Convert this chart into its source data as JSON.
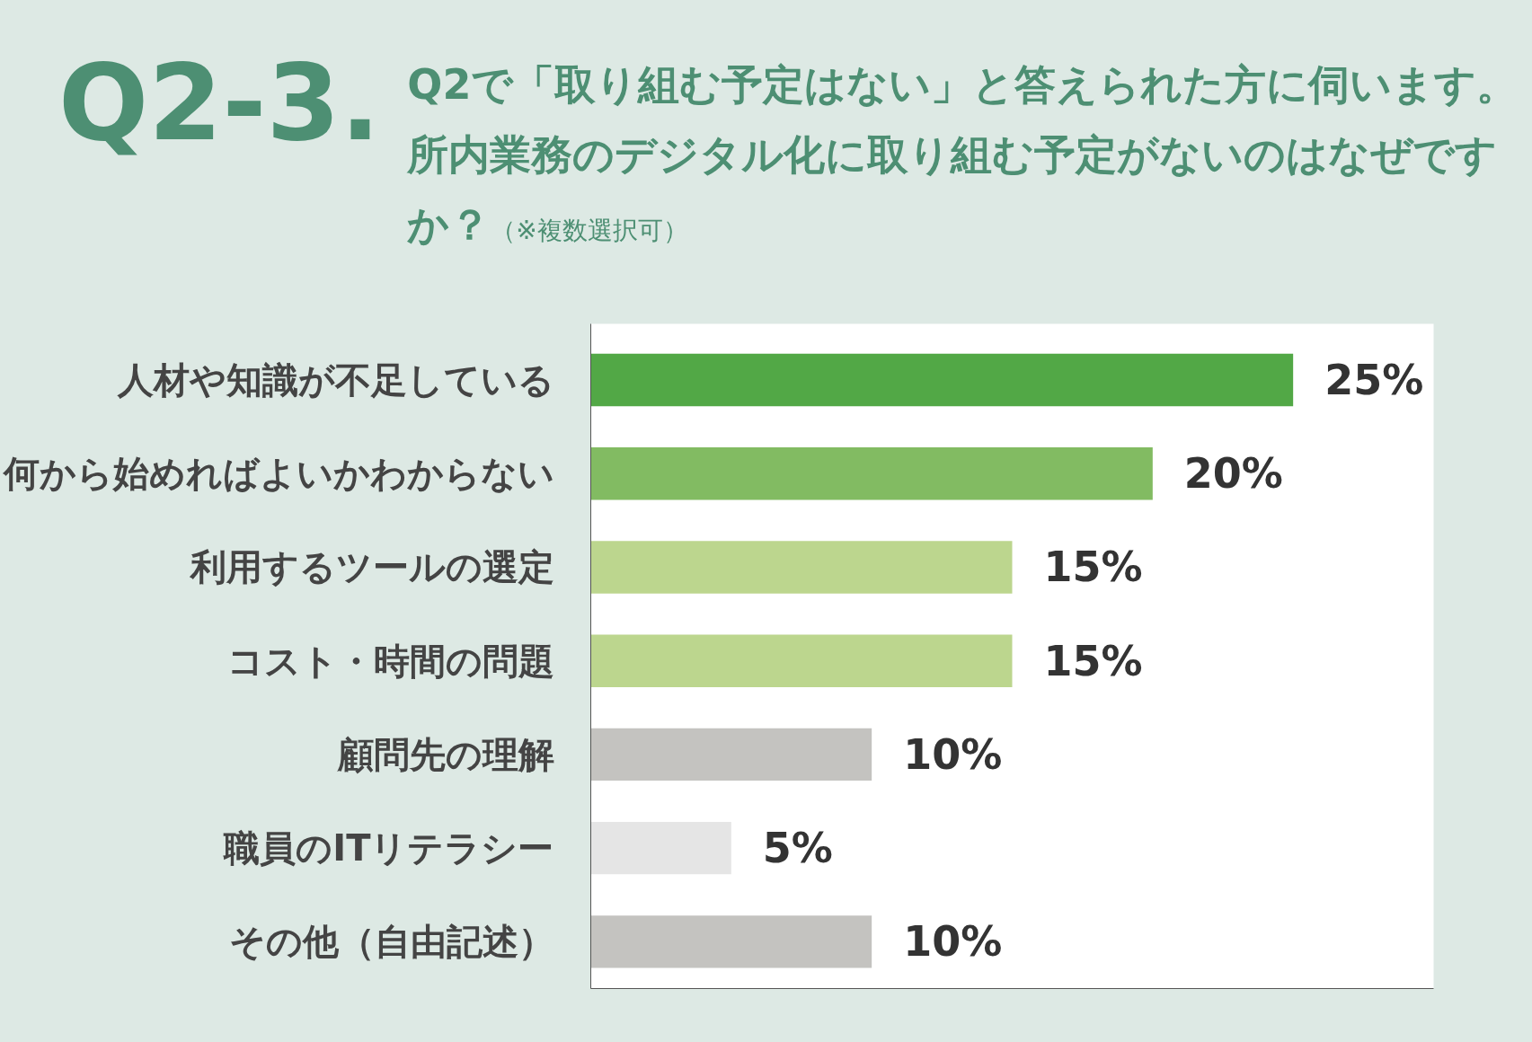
{
  "chart_data": {
    "type": "bar",
    "orientation": "horizontal",
    "title": "Q2-3.",
    "subtitle": "Q2で「取り組む予定はない」と答えられた方に伺います。所内業務のデジタル化に取り組む予定がないのはなぜですか？",
    "annotations": [
      "（※複数選択可）"
    ],
    "categories": [
      "人材や知識が不足している",
      "何から始めればよいかわからない",
      "利用するツールの選定",
      "コスト・時間の問題",
      "顧問先の理解",
      "職員のITリテラシー",
      "その他（自由記述）"
    ],
    "values": [
      25,
      20,
      15,
      15,
      10,
      5,
      10
    ],
    "colors": [
      "#52a846",
      "#82bb62",
      "#bcd68e",
      "#bcd68e",
      "#c4c3c0",
      "#e5e5e5",
      "#c4c3c0"
    ],
    "value_labels": [
      "25%",
      "20%",
      "15%",
      "15%",
      "10%",
      "5%",
      "10%"
    ],
    "xlim": [
      0,
      30
    ],
    "tick_labels": "y",
    "grid": false
  }
}
